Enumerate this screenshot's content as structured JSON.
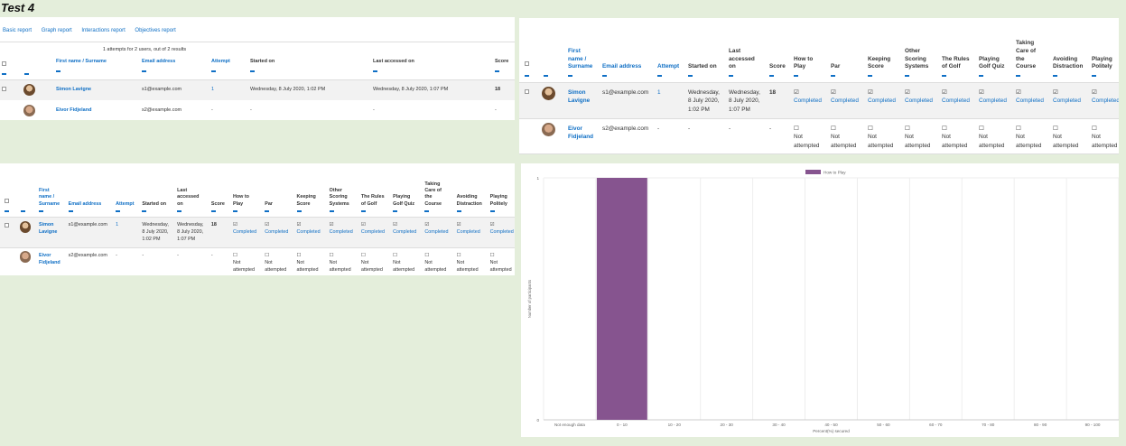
{
  "page_title": "Test 4",
  "tabs": [
    "Basic report",
    "Graph report",
    "Interactions report",
    "Objectives report"
  ],
  "summary": "1 attempts for 2 users, out of 2 results",
  "basic_table": {
    "headers": [
      "First name / Surname",
      "Email address",
      "Attempt",
      "Started on",
      "Last accessed on",
      "Score"
    ],
    "rows": [
      {
        "name": "Simon Lavigne",
        "email": "s1@example.com",
        "attempt": "1",
        "started": "Wednesday, 8 July 2020, 1:02 PM",
        "last": "Wednesday, 8 July 2020, 1:07 PM",
        "score": "18"
      },
      {
        "name": "Eivor Fidjeland",
        "email": "s2@example.com",
        "attempt": "-",
        "started": "-",
        "last": "-",
        "score": "-"
      }
    ]
  },
  "wide_table": {
    "headers": {
      "name": [
        "First",
        "name /",
        "Surname"
      ],
      "email": [
        "Email address"
      ],
      "attempt": [
        "Attempt"
      ],
      "started": [
        "Started on"
      ],
      "last": [
        "Last",
        "accessed",
        "on"
      ],
      "score": [
        "Score"
      ],
      "q1": [
        "How to",
        "Play"
      ],
      "q2": [
        "Par"
      ],
      "q3": [
        "Keeping",
        "Score"
      ],
      "q4": [
        "Other",
        "Scoring",
        "Systems"
      ],
      "q5": [
        "The Rules",
        "of Golf"
      ],
      "q6": [
        "Playing",
        "Golf Quiz"
      ],
      "q7": [
        "Taking",
        "Care of",
        "the",
        "Course"
      ],
      "q8": [
        "Avoiding",
        "Distraction"
      ],
      "q9": [
        "Playing",
        "Politely"
      ]
    },
    "row1": {
      "name": [
        "Simon",
        "Lavigne"
      ],
      "email": "s1@example.com",
      "attempt": "1",
      "started": [
        "Wednesday,",
        "8 July 2020,",
        "1:02 PM"
      ],
      "last": [
        "Wednesday,",
        "8 July 2020,",
        "1:07 PM"
      ],
      "score": "18",
      "status": "Completed"
    },
    "row2": {
      "name": [
        "Eivor",
        "Fidjeland"
      ],
      "email": "s2@example.com",
      "attempt": "-",
      "started": "-",
      "last": "-",
      "score": "-",
      "status": [
        "Not",
        "attempted"
      ]
    }
  },
  "chart_data": {
    "type": "bar",
    "categories": [
      "Not enough data",
      "0 - 10",
      "10 - 20",
      "20 - 30",
      "30 - 40",
      "40 - 50",
      "50 - 60",
      "60 - 70",
      "70 - 80",
      "80 - 90",
      "90 - 100"
    ],
    "series": [
      {
        "name": "How to Play",
        "values": [
          0,
          1,
          0,
          0,
          0,
          0,
          0,
          0,
          0,
          0,
          0
        ],
        "color": "#86548f"
      }
    ],
    "xlabel": "Percent(%) secured",
    "ylabel": "Number of participants",
    "ylim": [
      0,
      1
    ],
    "yticks": [
      "0",
      "1"
    ],
    "grid": true,
    "legend": "top-center"
  }
}
